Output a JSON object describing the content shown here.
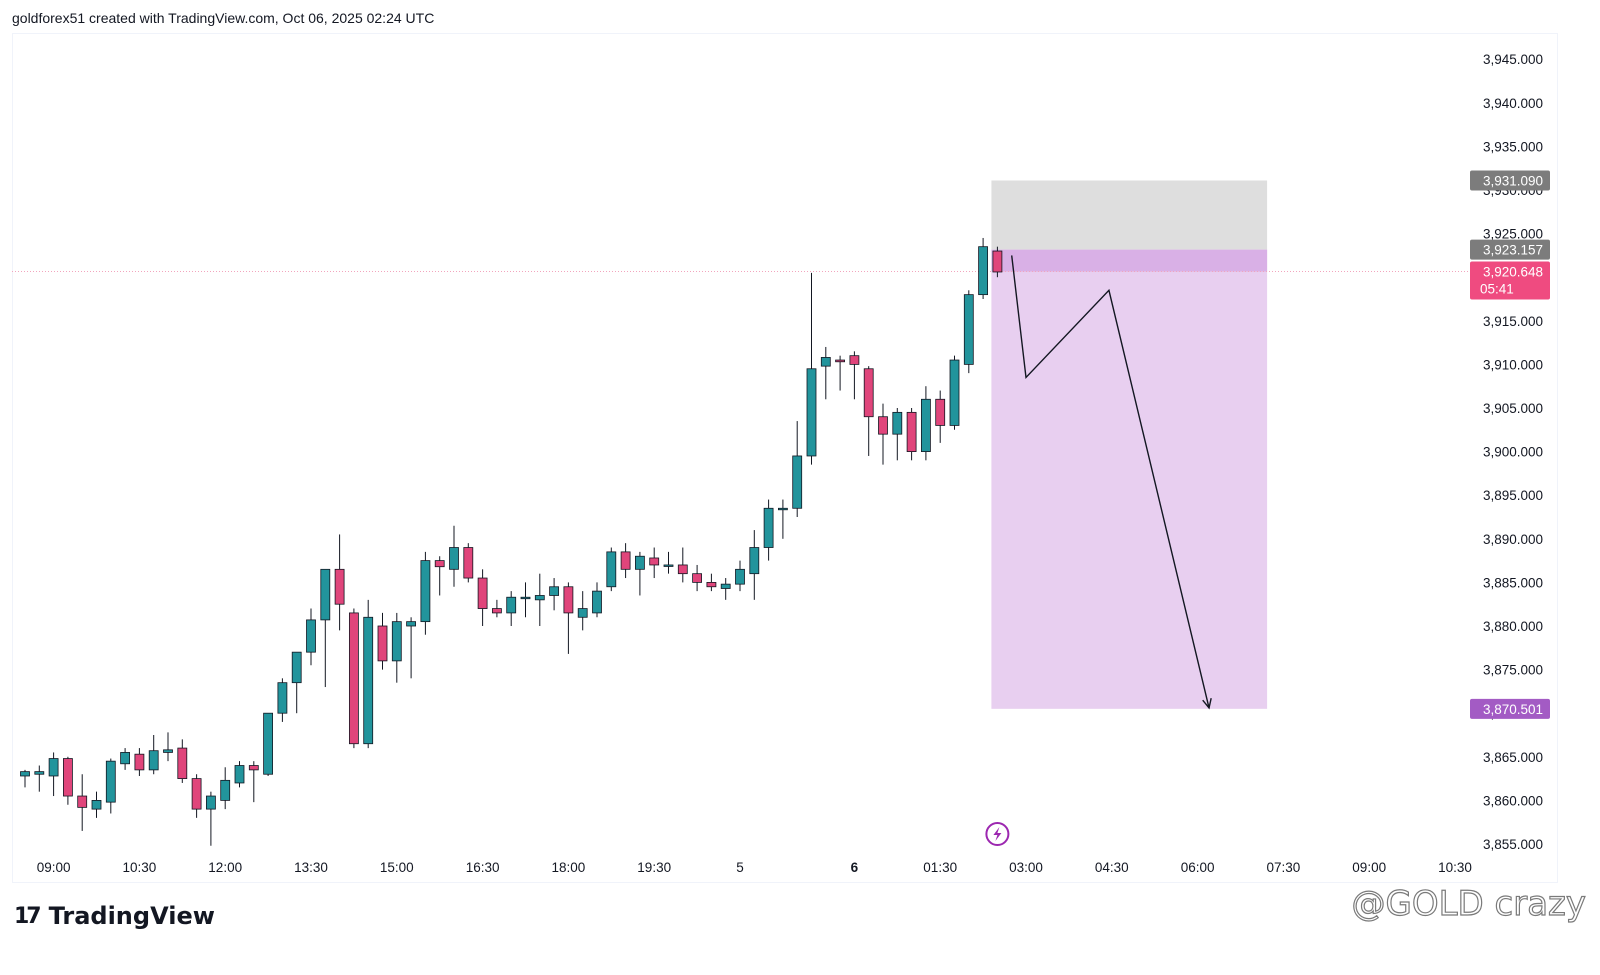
{
  "header": {
    "text": "goldforex51 created with TradingView.com, Oct 06, 2025 02:24 UTC"
  },
  "footer": {
    "brand": "TradingView",
    "brand_glyph": "17"
  },
  "watermark": {
    "text": "@GOLD crazy"
  },
  "colors": {
    "up": "#22949c",
    "down": "#e0457b",
    "zone_top": "#dedede",
    "zone_bottom": "#e8cff0",
    "entry": "#d9b0e6",
    "price_tag": "#ef4b80",
    "target_tag": "#a35bc4",
    "gray_tag": "#7c7c7c"
  },
  "chart_data": {
    "type": "candlestick",
    "symbol_timeframe": "30m",
    "title": "",
    "ylim": [
      3853,
      3950
    ],
    "y_ticks": [
      "3,855.000",
      "3,860.000",
      "3,865.000",
      "3,870.000",
      "3,875.000",
      "3,880.000",
      "3,885.000",
      "3,890.000",
      "3,895.000",
      "3,900.000",
      "3,905.000",
      "3,910.000",
      "3,915.000",
      "3,920.000",
      "3,925.000",
      "3,930.000",
      "3,935.000",
      "3,940.000",
      "3,945.000"
    ],
    "x_ticks": [
      {
        "label": "09:00",
        "i": 2,
        "bold": false
      },
      {
        "label": "10:30",
        "i": 8,
        "bold": false
      },
      {
        "label": "12:00",
        "i": 14,
        "bold": false
      },
      {
        "label": "13:30",
        "i": 20,
        "bold": false
      },
      {
        "label": "15:00",
        "i": 26,
        "bold": false
      },
      {
        "label": "16:30",
        "i": 32,
        "bold": false
      },
      {
        "label": "18:00",
        "i": 38,
        "bold": false
      },
      {
        "label": "19:30",
        "i": 44,
        "bold": false
      },
      {
        "label": "5",
        "i": 50,
        "bold": false
      },
      {
        "label": "6",
        "i": 58,
        "bold": true
      },
      {
        "label": "01:30",
        "i": 64,
        "bold": false
      },
      {
        "label": "03:00",
        "i": 70,
        "bold": false
      },
      {
        "label": "04:30",
        "i": 76,
        "bold": false
      },
      {
        "label": "06:00",
        "i": 82,
        "bold": false
      },
      {
        "label": "07:30",
        "i": 88,
        "bold": false
      },
      {
        "label": "09:00",
        "i": 94,
        "bold": false
      },
      {
        "label": "10:30",
        "i": 100,
        "bold": false
      }
    ],
    "candles": [
      {
        "o": 3862.8,
        "h": 3863.5,
        "l": 3861.5,
        "c": 3863.3
      },
      {
        "o": 3863.0,
        "h": 3864.0,
        "l": 3861.0,
        "c": 3863.3
      },
      {
        "o": 3862.8,
        "h": 3865.5,
        "l": 3860.5,
        "c": 3864.8
      },
      {
        "o": 3864.8,
        "h": 3865.0,
        "l": 3859.5,
        "c": 3860.5
      },
      {
        "o": 3860.5,
        "h": 3863.0,
        "l": 3856.5,
        "c": 3859.2
      },
      {
        "o": 3859.0,
        "h": 3861.0,
        "l": 3858.0,
        "c": 3860.0
      },
      {
        "o": 3859.8,
        "h": 3864.8,
        "l": 3858.5,
        "c": 3864.5
      },
      {
        "o": 3864.2,
        "h": 3866.0,
        "l": 3863.5,
        "c": 3865.5
      },
      {
        "o": 3865.3,
        "h": 3866.0,
        "l": 3862.8,
        "c": 3863.5
      },
      {
        "o": 3863.5,
        "h": 3867.5,
        "l": 3863.0,
        "c": 3865.7
      },
      {
        "o": 3865.5,
        "h": 3867.8,
        "l": 3864.5,
        "c": 3865.8
      },
      {
        "o": 3866.0,
        "h": 3867.0,
        "l": 3862.0,
        "c": 3862.5
      },
      {
        "o": 3862.5,
        "h": 3863.0,
        "l": 3858.0,
        "c": 3859.0
      },
      {
        "o": 3859.0,
        "h": 3861.0,
        "l": 3854.8,
        "c": 3860.5
      },
      {
        "o": 3860.0,
        "h": 3863.8,
        "l": 3859.0,
        "c": 3862.3
      },
      {
        "o": 3862.0,
        "h": 3864.5,
        "l": 3861.5,
        "c": 3864.0
      },
      {
        "o": 3864.0,
        "h": 3864.5,
        "l": 3859.8,
        "c": 3863.5
      },
      {
        "o": 3863.0,
        "h": 3870.0,
        "l": 3862.8,
        "c": 3870.0
      },
      {
        "o": 3870.0,
        "h": 3874.0,
        "l": 3869.0,
        "c": 3873.5
      },
      {
        "o": 3873.5,
        "h": 3877.0,
        "l": 3870.0,
        "c": 3877.0
      },
      {
        "o": 3877.0,
        "h": 3882.0,
        "l": 3875.5,
        "c": 3880.7
      },
      {
        "o": 3880.7,
        "h": 3886.0,
        "l": 3873.0,
        "c": 3886.5
      },
      {
        "o": 3886.5,
        "h": 3890.5,
        "l": 3879.5,
        "c": 3882.5
      },
      {
        "o": 3881.5,
        "h": 3882.0,
        "l": 3866.0,
        "c": 3866.5
      },
      {
        "o": 3866.5,
        "h": 3883.0,
        "l": 3866.0,
        "c": 3881.0
      },
      {
        "o": 3880.0,
        "h": 3881.5,
        "l": 3875.0,
        "c": 3876.0
      },
      {
        "o": 3876.0,
        "h": 3881.5,
        "l": 3873.5,
        "c": 3880.5
      },
      {
        "o": 3880.0,
        "h": 3881.0,
        "l": 3874.0,
        "c": 3880.5
      },
      {
        "o": 3880.5,
        "h": 3888.5,
        "l": 3879.0,
        "c": 3887.5
      },
      {
        "o": 3887.5,
        "h": 3888.0,
        "l": 3883.5,
        "c": 3886.8
      },
      {
        "o": 3886.5,
        "h": 3891.5,
        "l": 3884.5,
        "c": 3889.0
      },
      {
        "o": 3889.0,
        "h": 3889.5,
        "l": 3885.0,
        "c": 3885.5
      },
      {
        "o": 3885.5,
        "h": 3886.5,
        "l": 3880.0,
        "c": 3882.0
      },
      {
        "o": 3882.0,
        "h": 3883.0,
        "l": 3881.0,
        "c": 3881.5
      },
      {
        "o": 3881.5,
        "h": 3884.0,
        "l": 3880.0,
        "c": 3883.3
      },
      {
        "o": 3883.3,
        "h": 3885.0,
        "l": 3881.0,
        "c": 3883.3
      },
      {
        "o": 3883.0,
        "h": 3886.0,
        "l": 3880.0,
        "c": 3883.5
      },
      {
        "o": 3883.5,
        "h": 3885.5,
        "l": 3881.8,
        "c": 3884.5
      },
      {
        "o": 3884.5,
        "h": 3885.0,
        "l": 3876.8,
        "c": 3881.5
      },
      {
        "o": 3881.0,
        "h": 3884.0,
        "l": 3879.5,
        "c": 3882.0
      },
      {
        "o": 3881.5,
        "h": 3885.0,
        "l": 3881.0,
        "c": 3884.0
      },
      {
        "o": 3884.5,
        "h": 3889.0,
        "l": 3884.0,
        "c": 3888.5
      },
      {
        "o": 3888.5,
        "h": 3889.5,
        "l": 3885.5,
        "c": 3886.5
      },
      {
        "o": 3886.5,
        "h": 3888.5,
        "l": 3883.5,
        "c": 3888.0
      },
      {
        "o": 3887.8,
        "h": 3889.0,
        "l": 3885.5,
        "c": 3887.0
      },
      {
        "o": 3887.0,
        "h": 3888.5,
        "l": 3886.0,
        "c": 3887.0
      },
      {
        "o": 3887.0,
        "h": 3889.0,
        "l": 3885.0,
        "c": 3886.0
      },
      {
        "o": 3886.0,
        "h": 3887.0,
        "l": 3884.0,
        "c": 3885.0
      },
      {
        "o": 3885.0,
        "h": 3886.0,
        "l": 3884.0,
        "c": 3884.5
      },
      {
        "o": 3884.3,
        "h": 3885.5,
        "l": 3883.0,
        "c": 3884.8
      },
      {
        "o": 3884.8,
        "h": 3887.5,
        "l": 3884.0,
        "c": 3886.5
      },
      {
        "o": 3886.0,
        "h": 3891.0,
        "l": 3883.0,
        "c": 3889.0
      },
      {
        "o": 3889.0,
        "h": 3894.5,
        "l": 3887.5,
        "c": 3893.5
      },
      {
        "o": 3893.5,
        "h": 3894.5,
        "l": 3890.0,
        "c": 3893.5
      },
      {
        "o": 3893.5,
        "h": 3903.5,
        "l": 3892.5,
        "c": 3899.5
      },
      {
        "o": 3899.5,
        "h": 3920.5,
        "l": 3898.5,
        "c": 3909.5
      },
      {
        "o": 3909.8,
        "h": 3912.0,
        "l": 3906.0,
        "c": 3910.8
      },
      {
        "o": 3910.5,
        "h": 3911.0,
        "l": 3907.0,
        "c": 3910.3
      },
      {
        "o": 3911.0,
        "h": 3911.5,
        "l": 3906.0,
        "c": 3910.0
      },
      {
        "o": 3909.5,
        "h": 3909.8,
        "l": 3899.5,
        "c": 3904.0
      },
      {
        "o": 3904.0,
        "h": 3905.5,
        "l": 3898.5,
        "c": 3902.0
      },
      {
        "o": 3902.0,
        "h": 3905.0,
        "l": 3899.0,
        "c": 3904.5
      },
      {
        "o": 3904.5,
        "h": 3905.0,
        "l": 3899.0,
        "c": 3900.0
      },
      {
        "o": 3900.0,
        "h": 3907.5,
        "l": 3899.0,
        "c": 3906.0
      },
      {
        "o": 3906.0,
        "h": 3907.0,
        "l": 3901.0,
        "c": 3903.0
      },
      {
        "o": 3903.0,
        "h": 3911.0,
        "l": 3902.5,
        "c": 3910.5
      },
      {
        "o": 3910.0,
        "h": 3918.5,
        "l": 3909.0,
        "c": 3918.0
      },
      {
        "o": 3918.0,
        "h": 3924.5,
        "l": 3917.5,
        "c": 3923.5
      },
      {
        "o": 3923.0,
        "h": 3923.5,
        "l": 3920.0,
        "c": 3920.6
      }
    ],
    "short_position": {
      "start_i": 68.0,
      "end_i": 87.0,
      "stop": 3931.09,
      "entry": 3923.157,
      "target": 3870.501,
      "stop_label": "3,931.090",
      "entry_label": "3,923.157",
      "target_label": "3,870.501"
    },
    "current_price": {
      "value": 3920.648,
      "label": "3,920.648",
      "countdown": "05:41"
    },
    "projection_path": [
      {
        "i": 69.0,
        "y": 3922.5
      },
      {
        "i": 70.0,
        "y": 3908.5
      },
      {
        "i": 75.8,
        "y": 3918.5
      },
      {
        "i": 82.8,
        "y": 3870.6
      }
    ],
    "flash_icon_i": 68.0
  }
}
